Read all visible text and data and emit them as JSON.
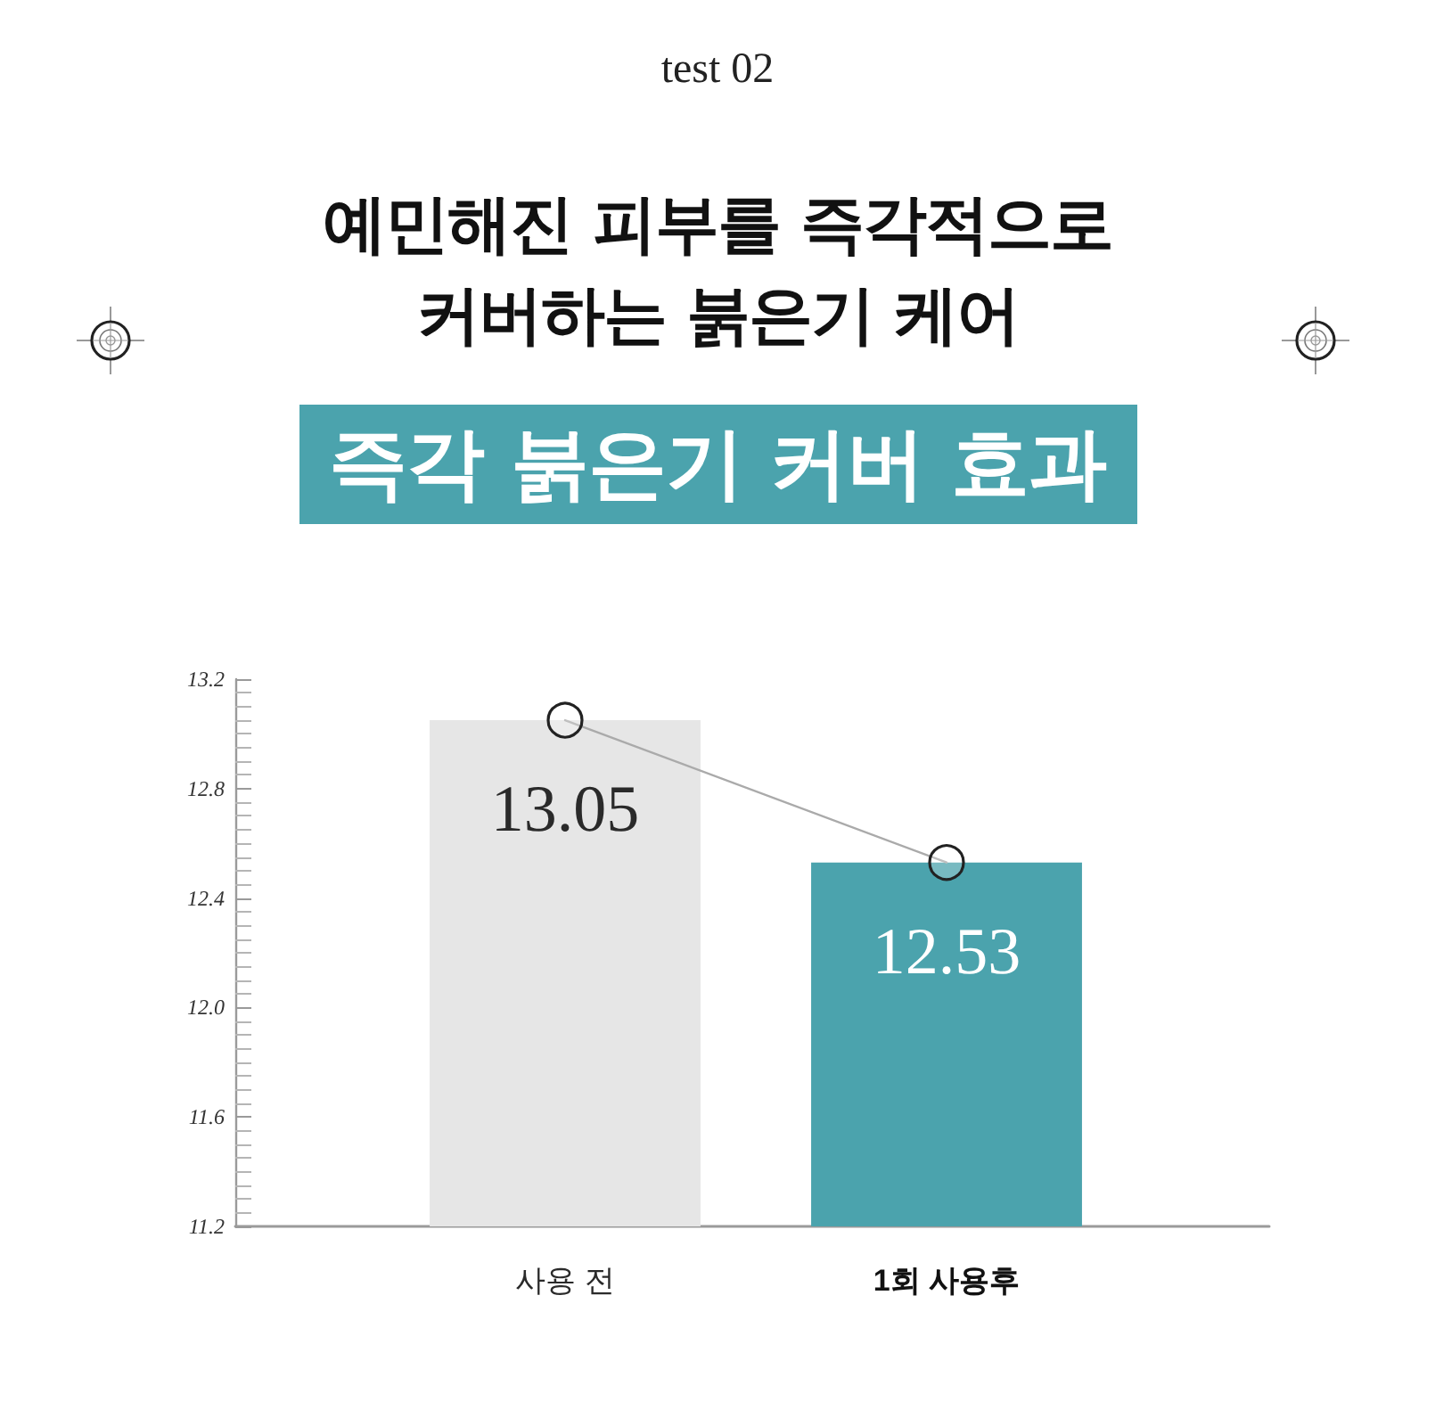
{
  "chart_data": {
    "type": "bar",
    "title": "예민해진 피부를 즉각적으로\n커버하는 붉은기 케어",
    "subtitle": "즉각 붉은기 커버 효과",
    "annotations": [
      "test 02"
    ],
    "categories": [
      "사용 전",
      "1회 사용후"
    ],
    "series": [
      {
        "colors": [
          "#e6e6e6",
          "#4ba3ad"
        ],
        "values": [
          13.05,
          12.53
        ],
        "value_labels": [
          "13.05",
          "12.53"
        ]
      },
      {
        "type": "line",
        "color": "#aaaaaa",
        "values": [
          13.05,
          12.53
        ]
      }
    ],
    "marker": "circle",
    "ylim": [
      11.2,
      13.2
    ],
    "yticks": [
      11.2,
      11.6,
      {
        "value": 12,
        "label": "12.0"
      },
      12.4,
      12.8,
      13.2
    ],
    "grid": false
  }
}
